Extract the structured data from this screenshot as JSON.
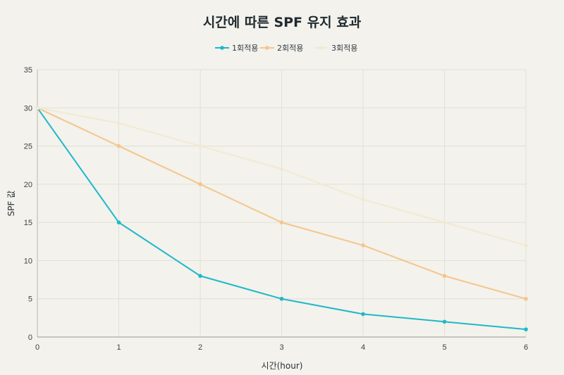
{
  "chart_data": {
    "type": "line",
    "title": "시간에 따른 SPF 유지 효과",
    "xlabel": "시간(hour)",
    "ylabel": "SPF 값",
    "x": [
      0,
      1,
      2,
      3,
      4,
      5,
      6
    ],
    "xlim": [
      0,
      6
    ],
    "ylim": [
      0,
      35
    ],
    "yticks": [
      0,
      5,
      10,
      15,
      20,
      25,
      30,
      35
    ],
    "xticks": [
      0,
      1,
      2,
      3,
      4,
      5,
      6
    ],
    "grid": true,
    "legend_position": "top-center",
    "series": [
      {
        "name": "1회적용",
        "color": "#1fb8c9",
        "values": [
          30,
          15,
          8,
          5,
          3,
          2,
          1
        ]
      },
      {
        "name": "2회적용",
        "color": "#f5c58c",
        "values": [
          30,
          25,
          20,
          15,
          12,
          8,
          5
        ]
      },
      {
        "name": "3회적용",
        "color": "#f1ead2",
        "values": [
          30,
          28,
          25,
          22,
          18,
          15,
          12
        ]
      }
    ]
  }
}
